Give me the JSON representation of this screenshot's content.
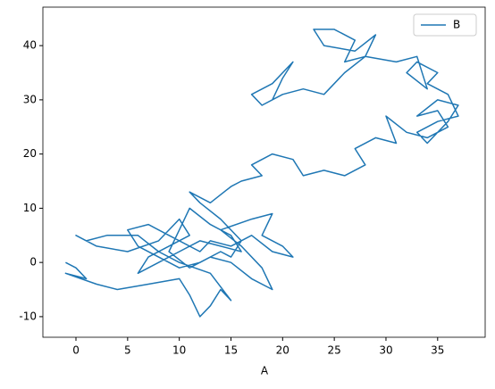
{
  "chart_data": {
    "type": "line",
    "xlabel": "A",
    "x": [
      -1,
      0,
      1,
      -1,
      2,
      4,
      7,
      10,
      11,
      12,
      13,
      14,
      15,
      13,
      10,
      8,
      6,
      3,
      1,
      0,
      2,
      5,
      8,
      10,
      11,
      9,
      7,
      6,
      8,
      10,
      12,
      14,
      16,
      15,
      13,
      11,
      10,
      9,
      11,
      13,
      15,
      17,
      19,
      18,
      16,
      14,
      17,
      19,
      18,
      20,
      21,
      19,
      17,
      15,
      13,
      12,
      9,
      7,
      5,
      6,
      8,
      10,
      12,
      14,
      15,
      16,
      14,
      12,
      11,
      13,
      15,
      16,
      18,
      17,
      19,
      21,
      22,
      24,
      26,
      28,
      27,
      29,
      31,
      30,
      32,
      34,
      36,
      35,
      33,
      35,
      37,
      36,
      34,
      33,
      35,
      37,
      36,
      34,
      35,
      33,
      32,
      34,
      33,
      31,
      28,
      26,
      27,
      25,
      23,
      24,
      27,
      29,
      28,
      26,
      24,
      22,
      20,
      18,
      17,
      19,
      21,
      20,
      19
    ],
    "series": [
      {
        "name": "B",
        "color": "#1f77b4",
        "values": [
          0,
          -1,
          -3,
          -2,
          -4,
          -5,
          -4,
          -3,
          -6,
          -10,
          -8,
          -5,
          -7,
          -2,
          0,
          2,
          5,
          5,
          4,
          5,
          3,
          2,
          4,
          8,
          5,
          3,
          1,
          -2,
          0,
          2,
          4,
          3,
          2,
          5,
          7,
          10,
          6,
          2,
          -1,
          1,
          0,
          -3,
          -5,
          -1,
          3,
          6,
          8,
          9,
          5,
          3,
          1,
          2,
          5,
          3,
          4,
          2,
          5,
          7,
          6,
          3,
          1,
          -1,
          0,
          2,
          1,
          4,
          8,
          11,
          13,
          11,
          14,
          15,
          16,
          18,
          20,
          19,
          16,
          17,
          16,
          18,
          21,
          23,
          22,
          27,
          24,
          23,
          25,
          28,
          27,
          30,
          29,
          26,
          22,
          24,
          26,
          27,
          31,
          33,
          35,
          37,
          35,
          32,
          38,
          37,
          38,
          37,
          41,
          43,
          43,
          40,
          39,
          42,
          38,
          35,
          31,
          32,
          31,
          29,
          31,
          33,
          37,
          34,
          30
        ]
      }
    ],
    "xlim": [
      -3.2,
      39.6
    ],
    "ylim": [
      -13.8,
      47.1
    ],
    "xticks": [
      0,
      5,
      10,
      15,
      20,
      25,
      30,
      35
    ],
    "yticks": [
      -10,
      0,
      10,
      20,
      30,
      40
    ],
    "legend": "upper right"
  }
}
